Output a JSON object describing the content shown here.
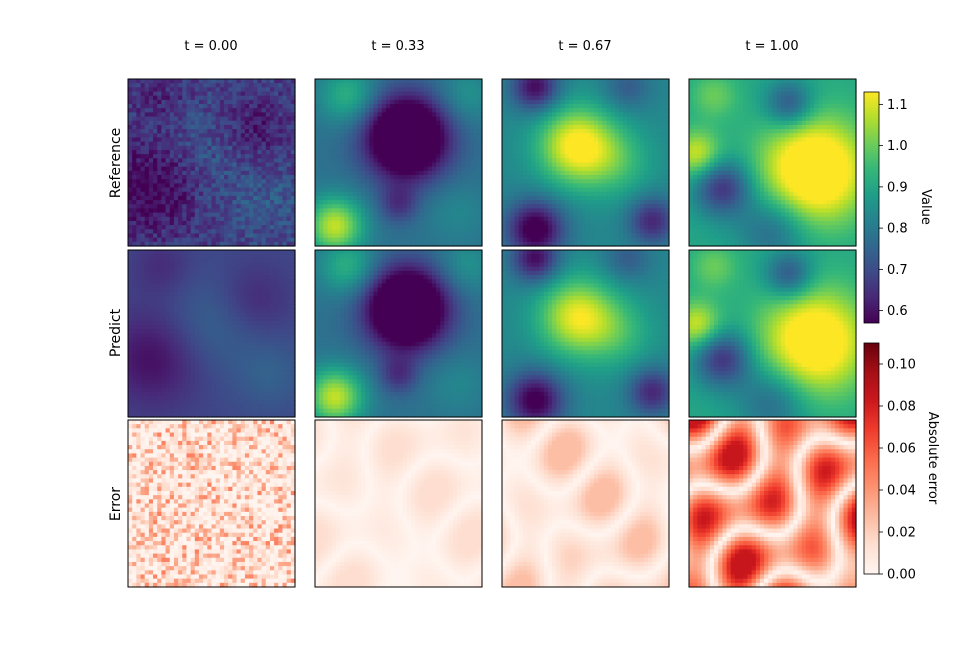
{
  "chart_data": {
    "type": "heatmap",
    "columns": [
      "t = 0.00",
      "t = 0.33",
      "t = 0.67",
      "t = 1.00"
    ],
    "rows": [
      "Reference",
      "Predict",
      "Error"
    ],
    "colorbars": [
      {
        "label": "Value",
        "colormap": "viridis",
        "range": [
          0.57,
          1.13
        ],
        "ticks": [
          0.6,
          0.7,
          0.8,
          0.9,
          1.0,
          1.1
        ],
        "tick_labels": [
          "0.6",
          "0.7",
          "0.8",
          "0.9",
          "1.0",
          "1.1"
        ]
      },
      {
        "label": "Absolute error",
        "colormap": "reds",
        "range": [
          0,
          0.11
        ],
        "ticks": [
          0,
          0.02,
          0.04,
          0.06,
          0.08,
          0.1
        ],
        "tick_labels": [
          "0.00",
          "0.02",
          "0.04",
          "0.06",
          "0.08",
          "0.10"
        ]
      }
    ],
    "panels": {
      "Reference": [
        {
          "t": 0.0,
          "base": 0.68,
          "blobs": [
            [
              0.15,
              0.65,
              0.2,
              -0.12
            ],
            [
              0.75,
              0.3,
              0.15,
              -0.08
            ],
            [
              0.5,
              0.45,
              0.2,
              0.05
            ],
            [
              0.2,
              0.1,
              0.12,
              -0.05
            ],
            [
              0.85,
              0.75,
              0.15,
              0.04
            ]
          ],
          "noise": 0.05
        },
        {
          "t": 0.33,
          "base": 0.78,
          "blobs": [
            [
              0.55,
              0.35,
              0.17,
              -0.45
            ],
            [
              0.12,
              0.88,
              0.12,
              0.3
            ],
            [
              0.2,
              0.1,
              0.12,
              0.15
            ],
            [
              0.85,
              0.8,
              0.13,
              0.05
            ],
            [
              0.5,
              0.75,
              0.08,
              -0.12
            ],
            [
              0.9,
              0.1,
              0.12,
              0.08
            ]
          ],
          "noise": 0
        },
        {
          "t": 0.67,
          "base": 0.83,
          "blobs": [
            [
              0.45,
              0.4,
              0.16,
              0.32
            ],
            [
              0.2,
              0.9,
              0.12,
              -0.3
            ],
            [
              0.2,
              0.05,
              0.1,
              -0.25
            ],
            [
              0.9,
              0.85,
              0.1,
              -0.2
            ],
            [
              0.7,
              0.5,
              0.15,
              0.1
            ],
            [
              0.75,
              0.05,
              0.1,
              -0.1
            ]
          ],
          "noise": 0
        },
        {
          "t": 1.0,
          "base": 0.9,
          "blobs": [
            [
              0.75,
              0.55,
              0.22,
              0.35
            ],
            [
              0.6,
              0.15,
              0.1,
              -0.2
            ],
            [
              0.2,
              0.65,
              0.12,
              -0.25
            ],
            [
              0.05,
              0.45,
              0.1,
              0.2
            ],
            [
              0.5,
              0.9,
              0.15,
              -0.15
            ],
            [
              0.15,
              0.1,
              0.1,
              0.1
            ]
          ],
          "noise": 0
        }
      ],
      "Predict": [
        {
          "t": 0.0,
          "base": 0.69,
          "blobs": [
            [
              0.15,
              0.65,
              0.2,
              -0.1
            ],
            [
              0.75,
              0.3,
              0.15,
              -0.06
            ],
            [
              0.5,
              0.45,
              0.2,
              0.06
            ],
            [
              0.2,
              0.1,
              0.12,
              -0.05
            ],
            [
              0.85,
              0.75,
              0.15,
              0.05
            ]
          ],
          "noise": 0
        },
        {
          "t": 0.33,
          "base": 0.78,
          "blobs": [
            [
              0.55,
              0.35,
              0.17,
              -0.45
            ],
            [
              0.12,
              0.88,
              0.12,
              0.3
            ],
            [
              0.2,
              0.1,
              0.12,
              0.15
            ],
            [
              0.85,
              0.8,
              0.13,
              0.05
            ],
            [
              0.5,
              0.75,
              0.08,
              -0.12
            ],
            [
              0.9,
              0.1,
              0.12,
              0.08
            ]
          ],
          "noise": 0
        },
        {
          "t": 0.67,
          "base": 0.83,
          "blobs": [
            [
              0.45,
              0.4,
              0.16,
              0.28
            ],
            [
              0.2,
              0.9,
              0.12,
              -0.28
            ],
            [
              0.2,
              0.05,
              0.1,
              -0.25
            ],
            [
              0.9,
              0.85,
              0.1,
              -0.2
            ],
            [
              0.7,
              0.5,
              0.15,
              0.1
            ],
            [
              0.75,
              0.05,
              0.1,
              -0.1
            ]
          ],
          "noise": 0
        },
        {
          "t": 1.0,
          "base": 0.9,
          "blobs": [
            [
              0.75,
              0.55,
              0.22,
              0.32
            ],
            [
              0.6,
              0.15,
              0.1,
              -0.2
            ],
            [
              0.2,
              0.65,
              0.12,
              -0.25
            ],
            [
              0.05,
              0.45,
              0.1,
              0.2
            ],
            [
              0.5,
              0.9,
              0.15,
              -0.15
            ],
            [
              0.15,
              0.1,
              0.1,
              0.1
            ]
          ],
          "noise": 0
        }
      ],
      "Error": [
        {
          "t": 0.0,
          "amplitude": 0.03,
          "pattern": "speckle"
        },
        {
          "t": 0.33,
          "amplitude": 0.012,
          "pattern": "smooth"
        },
        {
          "t": 0.67,
          "amplitude": 0.022,
          "pattern": "smooth"
        },
        {
          "t": 1.0,
          "amplitude": 0.07,
          "pattern": "smooth"
        }
      ]
    }
  }
}
